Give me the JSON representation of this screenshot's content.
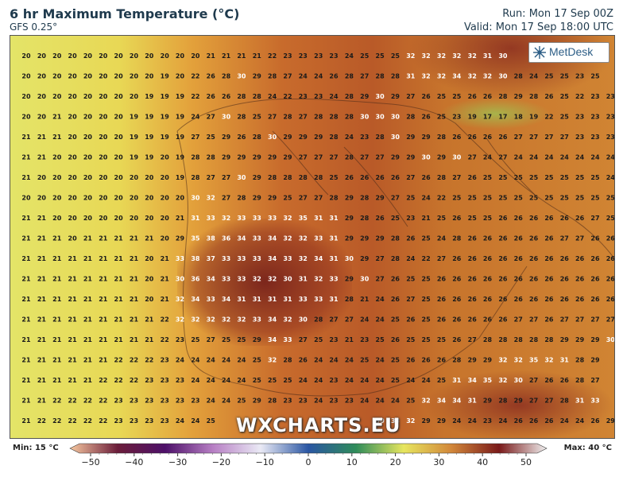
{
  "header": {
    "title": "6 hr Maximum Temperature (°C)",
    "model": "GFS 0.25°",
    "run": "Run: Mon 17 Sep 00Z",
    "valid": "Valid: Mon 17 Sep 18:00 UTC"
  },
  "logo": {
    "text": "MetDesk"
  },
  "watermark": "WXCHARTS.EU",
  "legend": {
    "min_label": "Min: 15 °C",
    "max_label": "Max: 40 °C",
    "ticks": [
      "−50",
      "−40",
      "−30",
      "−20",
      "−10",
      "0",
      "10",
      "20",
      "30",
      "40",
      "50"
    ],
    "stops": [
      "#f7c8a0",
      "#6b1d3a",
      "#4d1069",
      "#b77fc4",
      "#eaeaf5",
      "#2a56a3",
      "#2f8c5a",
      "#e7e65f",
      "#d2873a",
      "#7a1a1a",
      "#f0f0f0"
    ]
  },
  "grid_rows": [
    "20 20 20 20 20 20 20 20 20 20 20 20 21 21 21 21 22 23 23 23 23 24 25 25 25 32 32 32 32 32 31 30 _ _ _ _ _ _ _",
    "20 20 20 20 20 20 20 20 20 19 20 22 26 28 30 29 28 27 24 24 26 28 27 28 28 31 32 32 34 32 32 30 28 24 25 25 23 25 _",
    "20 20 20 20 20 20 20 20 19 19 19 22 26 26 28 28 24 22 23 23 24 28 29 30 29 27 26 25 25 26 26 28 29 28 26 25 22 23 23",
    "20 20 21 20 20 20 20 19 19 19 19 24 27 30 28 25 27 28 27 28 28 28 30 30 30 28 26 25 23 19 17 17 18 19 22 25 23 23 23",
    "21 21 21 20 20 20 20 19 19 19 19 27 25 29 26 28 30 29 29 29 28 24 23 28 30 29 29 28 26 26 26 26 27 27 27 27 23 23 23",
    "21 21 20 20 20 20 20 19 19 20 19 28 28 29 29 29 29 29 27 27 27 28 27 27 29 29 30 29 30 27 24 27 24 24 24 24 24 24 24",
    "21 20 20 20 20 20 20 20 20 20 19 28 27 27 30 29 28 28 28 28 25 26 26 26 26 27 26 28 27 26 25 25 25 25 25 25 25 25 24",
    "20 20 20 20 20 20 20 20 20 20 20 30 32 27 28 29 29 25 27 27 28 29 28 29 27 25 24 22 25 25 25 25 25 25 25 25 25 25 25",
    "21 21 20 20 20 20 20 20 20 20 21 31 33 32 33 33 33 32 35 31 31 29 28 26 25 23 21 25 26 25 25 26 26 26 26 26 26 27 25",
    "21 21 21 20 21 21 21 21 21 20 29 35 38 36 34 33 34 32 32 33 31 29 29 29 28 26 25 24 28 26 26 26 26 26 26 27 27 26 26",
    "21 21 21 21 21 21 21 21 20 21 33 38 37 33 33 33 34 33 32 34 31 30 29 27 28 24 22 27 26 26 26 26 26 26 26 26 26 26 26",
    "21 21 21 21 21 21 21 21 20 21 30 36 34 33 33 32 32 30 31 32 33 29 30 27 26 25 25 26 26 26 26 26 26 26 26 26 26 26 26",
    "21 21 21 21 21 21 21 21 20 21 32 34 33 34 31 31 31 31 33 33 31 28 21 24 26 27 25 26 26 26 26 26 26 26 26 26 26 26 26",
    "21 21 21 21 21 21 21 21 21 22 32 32 32 32 32 33 34 32 30 28 27 27 24 24 25 26 25 26 26 26 26 26 27 27 26 27 27 27 27",
    "21 21 21 21 21 21 21 21 21 22 23 25 27 25 25 29 34 33 27 25 23 21 23 25 26 25 25 25 26 27 28 28 28 28 28 29 29 29 30",
    "21 21 21 21 21 21 22 22 22 23 24 24 24 24 24 25 32 28 26 24 24 24 25 24 25 26 26 26 28 29 29 32 32 35 32 31 28 29 _",
    "21 21 21 21 21 22 22 22 23 23 23 24 24 24 24 25 25 25 24 24 23 24 24 24 25 24 24 25 31 34 35 32 30 27 26 26 28 27 _",
    "21 21 22 22 22 22 23 23 23 23 23 23 24 24 25 29 28 23 23 24 23 23 24 24 24 25 32 34 34 31 29 28 29 27 27 28 31 33 _",
    "21 22 22 22 22 22 23 23 23 23 24 24 25 _ _ _ _ _ _ _ _ _ _ 30 33 32 29 29 24 24 23 24 26 26 26 24 24 26 29"
  ]
}
